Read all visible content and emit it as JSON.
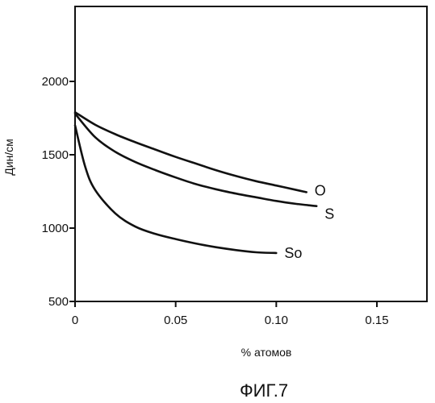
{
  "chart_data": {
    "type": "line",
    "title": "",
    "xlabel": "% атомов",
    "ylabel": "Дин/см",
    "caption": "ФИГ.7",
    "xlim": [
      0,
      0.175
    ],
    "ylim": [
      500,
      2500
    ],
    "x_ticks": [
      0,
      0.05,
      0.1,
      0.15
    ],
    "x_tick_labels": [
      "0",
      "0.05",
      "0.10",
      "0.15"
    ],
    "y_ticks": [
      500,
      1000,
      1500,
      2000
    ],
    "y_tick_labels": [
      "500",
      "1000",
      "1500",
      "2000"
    ],
    "grid": false,
    "legend": "none",
    "series": [
      {
        "name": "O",
        "x": [
          0,
          0.01,
          0.02,
          0.03,
          0.04,
          0.05,
          0.06,
          0.07,
          0.08,
          0.09,
          0.1,
          0.11,
          0.115
        ],
        "y": [
          1790,
          1705,
          1640,
          1585,
          1535,
          1485,
          1440,
          1395,
          1355,
          1320,
          1290,
          1260,
          1245
        ]
      },
      {
        "name": "S",
        "x": [
          0,
          0.01,
          0.02,
          0.03,
          0.04,
          0.05,
          0.06,
          0.07,
          0.08,
          0.09,
          0.1,
          0.11,
          0.12
        ],
        "y": [
          1780,
          1620,
          1520,
          1450,
          1395,
          1345,
          1300,
          1265,
          1235,
          1210,
          1185,
          1165,
          1150
        ]
      },
      {
        "name": "So",
        "x": [
          0,
          0.005,
          0.01,
          0.02,
          0.03,
          0.04,
          0.05,
          0.06,
          0.07,
          0.08,
          0.09,
          0.1
        ],
        "y": [
          1700,
          1420,
          1260,
          1100,
          1010,
          960,
          925,
          895,
          870,
          850,
          835,
          830
        ]
      }
    ]
  }
}
